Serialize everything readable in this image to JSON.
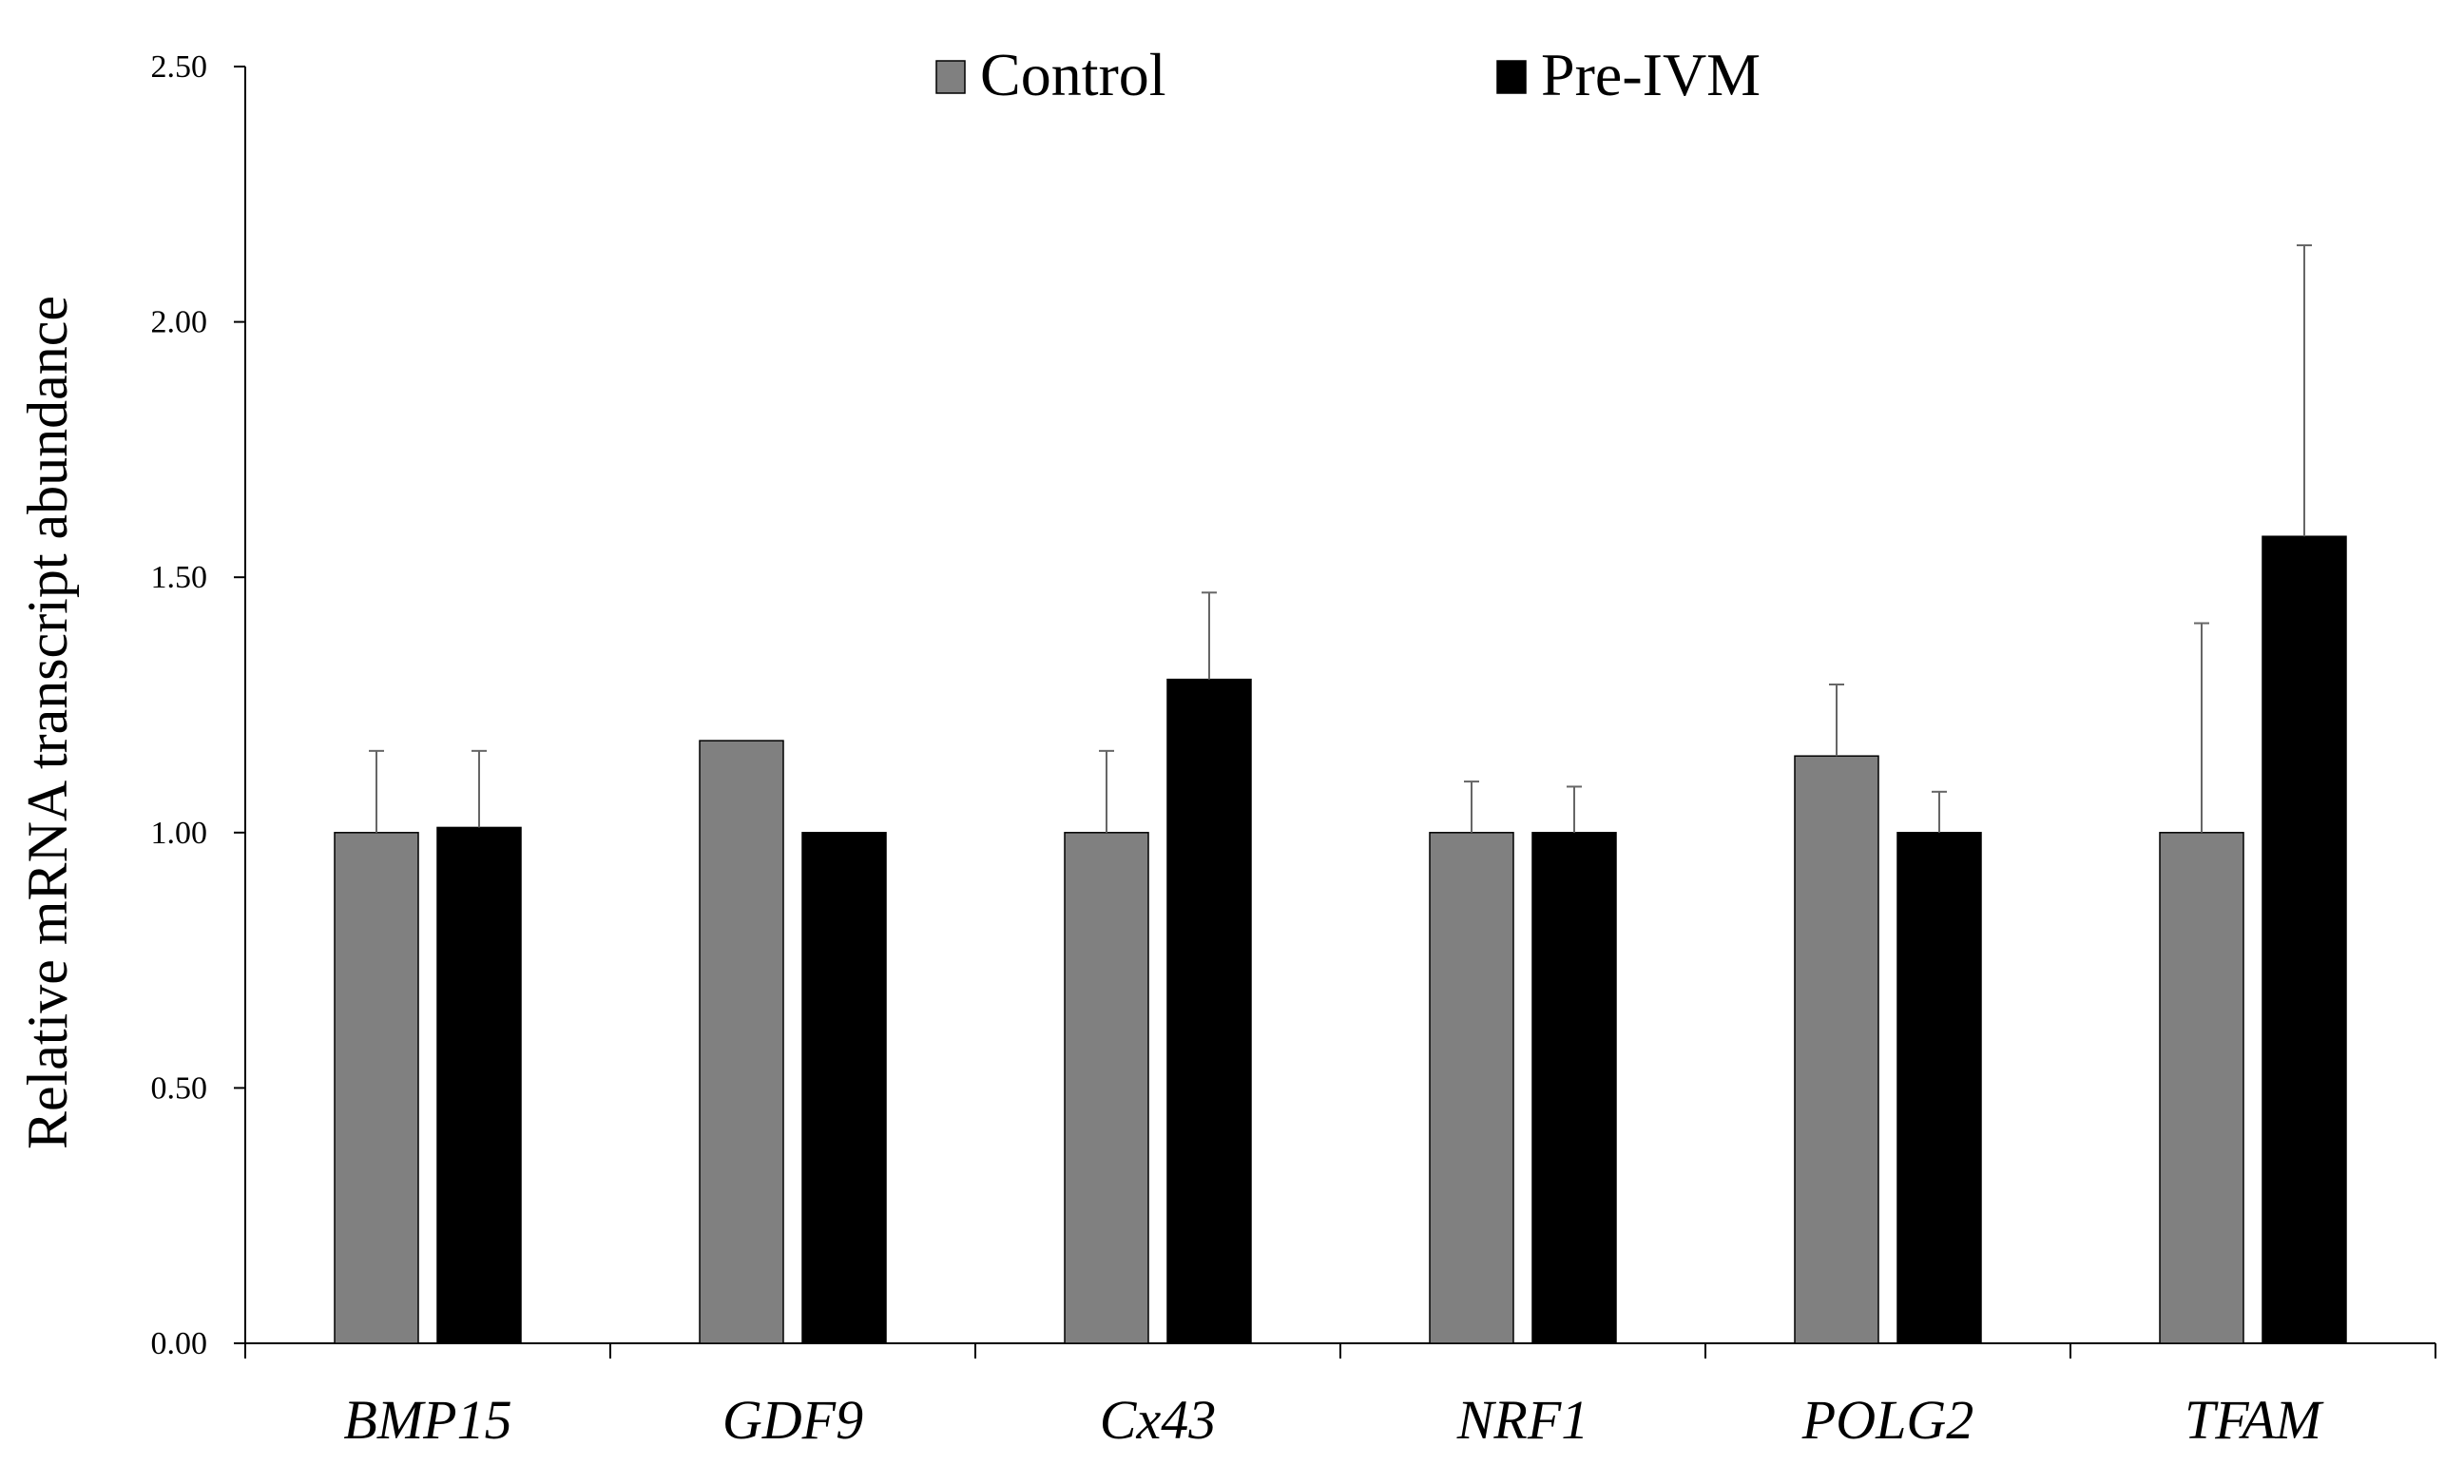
{
  "chart_data": {
    "type": "bar",
    "title": "",
    "xlabel": "",
    "ylabel": "Relative mRNA transcript abundance",
    "ylim": [
      0,
      2.5
    ],
    "yticks": [
      "0.00",
      "0.50",
      "1.00",
      "1.50",
      "2.00",
      "2.50"
    ],
    "categories": [
      "BMP15",
      "GDF9",
      "Cx43",
      "NRF1",
      "POLG2",
      "TFAM"
    ],
    "series": [
      {
        "name": "Control",
        "color": "#808080",
        "values": [
          1.0,
          1.18,
          1.0,
          1.0,
          1.15,
          1.0
        ],
        "errors": [
          0.16,
          0.0,
          0.16,
          0.1,
          0.14,
          0.41
        ]
      },
      {
        "name": "Pre-IVM",
        "color": "#000000",
        "values": [
          1.01,
          1.0,
          1.3,
          1.0,
          1.0,
          1.58
        ],
        "errors": [
          0.15,
          0.0,
          0.17,
          0.09,
          0.08,
          0.57
        ]
      }
    ],
    "legend_position": "top-center",
    "grid": false
  }
}
